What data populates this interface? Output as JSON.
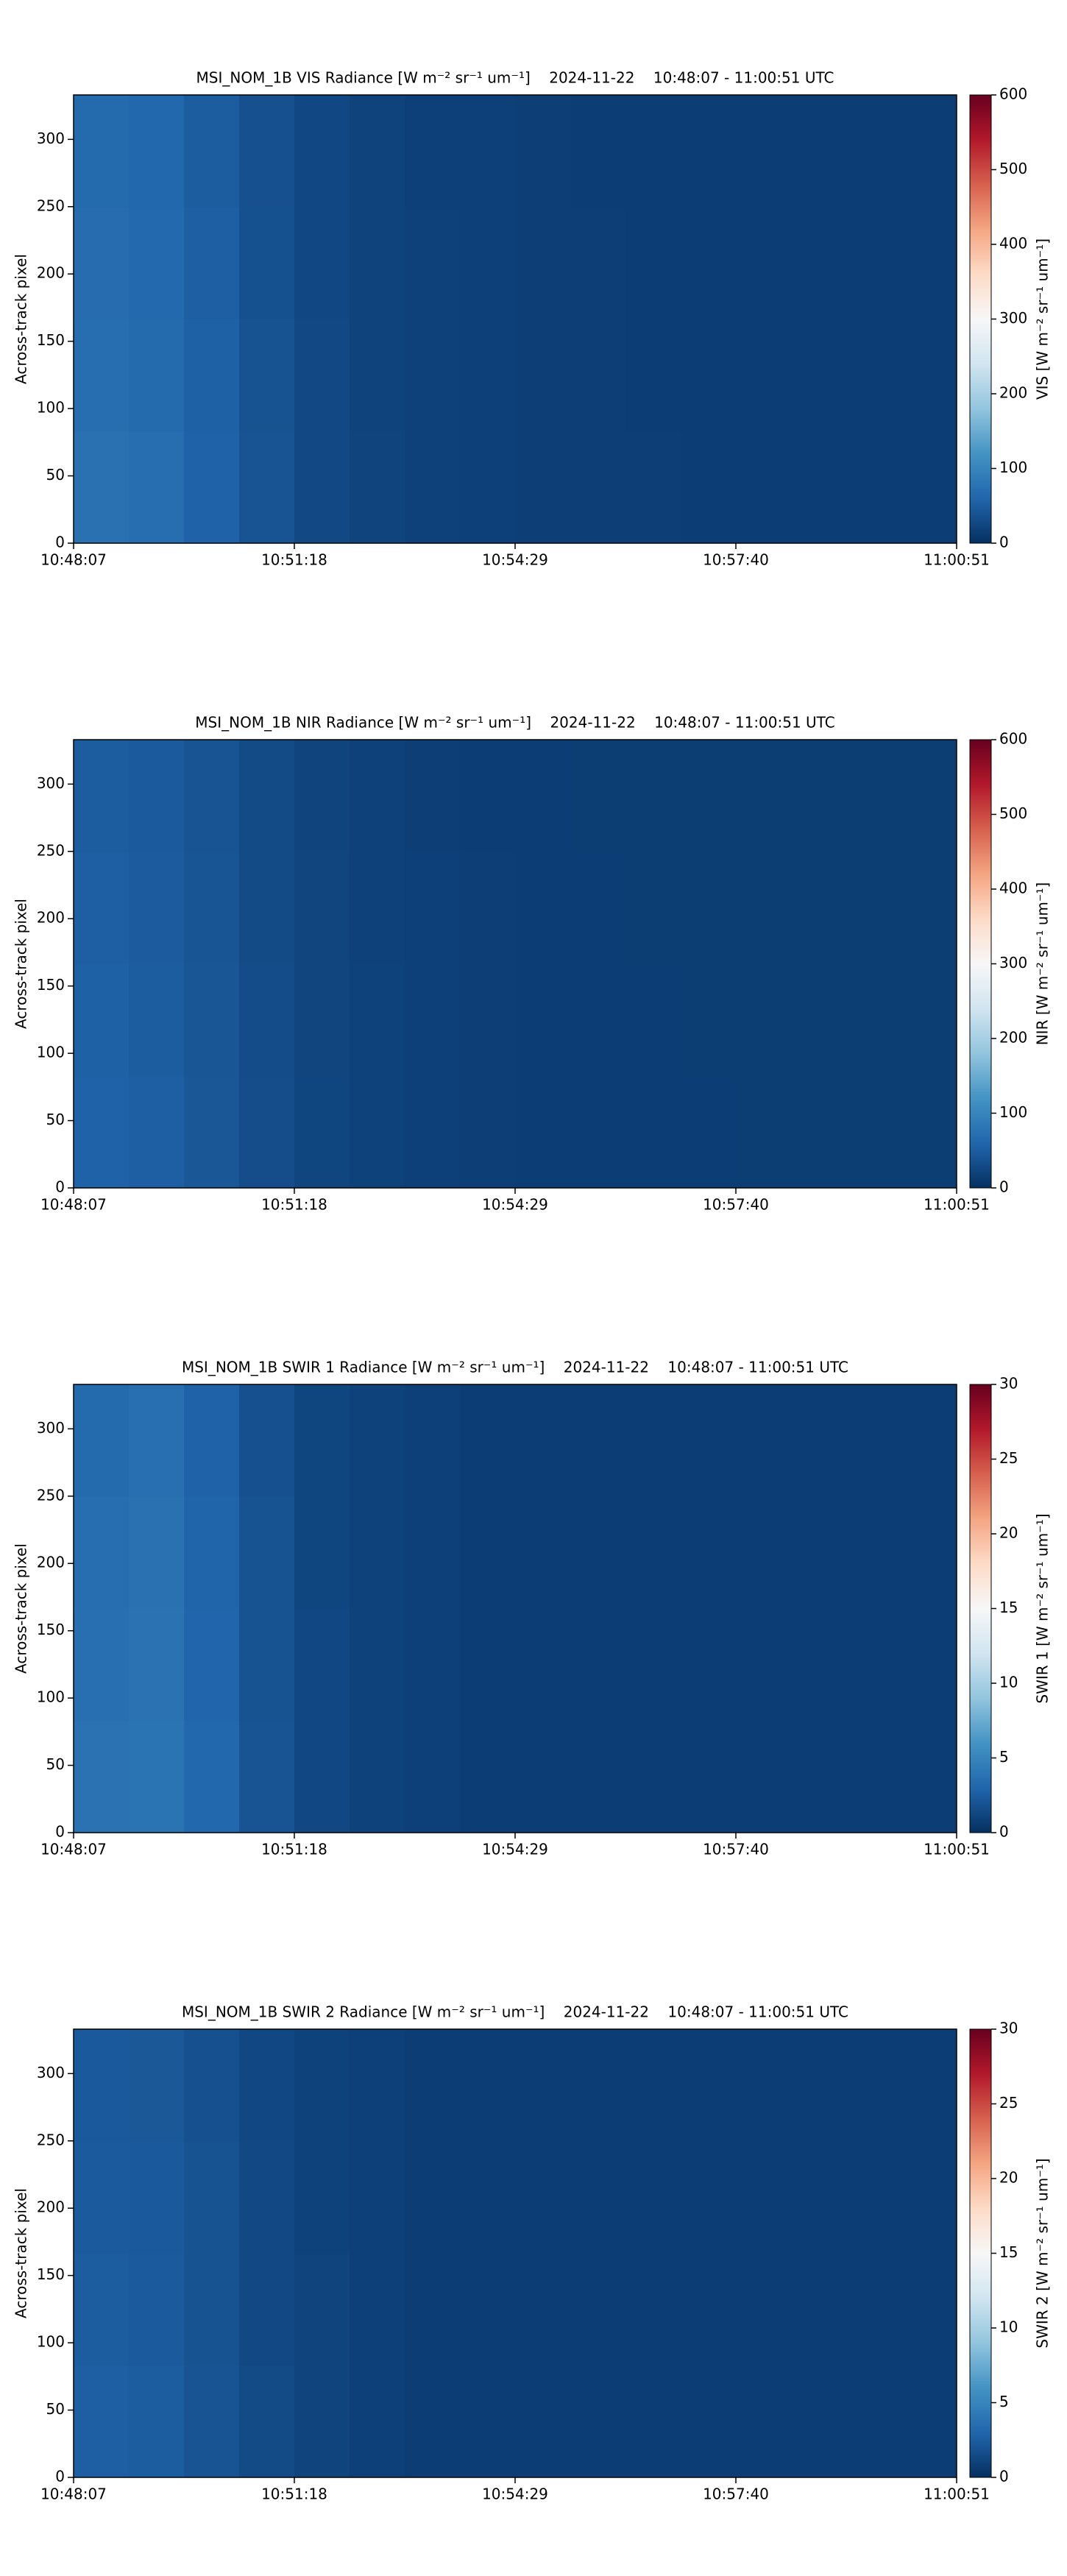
{
  "chart_data": [
    {
      "type": "heatmap",
      "title": "MSI_NOM_1B VIS Radiance [W m⁻² sr⁻¹ um⁻¹]    2024-11-22    10:48:07 - 11:00:51 UTC",
      "y_label": "Across-track pixel",
      "colorbar_label": "VIS [W m⁻² sr⁻¹ um⁻¹]",
      "colormap": "RdBu_r",
      "xticks": [
        "10:48:07",
        "10:51:18",
        "10:54:29",
        "10:57:40",
        "11:00:51"
      ],
      "ylim": [
        0,
        333
      ],
      "yticks": [
        0,
        50,
        100,
        150,
        200,
        250,
        300
      ],
      "zlim": [
        0,
        600
      ],
      "zticks": [
        0,
        100,
        200,
        300,
        400,
        500,
        600
      ],
      "z": [
        [
          74,
          70,
          56,
          40,
          28,
          22,
          19,
          18,
          17,
          17,
          17,
          16,
          16,
          16,
          16,
          16
        ],
        [
          70,
          66,
          54,
          38,
          27,
          21,
          19,
          18,
          17,
          17,
          16,
          16,
          16,
          16,
          16,
          16
        ],
        [
          68,
          64,
          52,
          37,
          26,
          21,
          19,
          18,
          17,
          17,
          16,
          16,
          16,
          16,
          16,
          16
        ],
        [
          66,
          62,
          50,
          36,
          26,
          21,
          18,
          18,
          17,
          16,
          16,
          16,
          16,
          16,
          16,
          16
        ]
      ]
    },
    {
      "type": "heatmap",
      "title": "MSI_NOM_1B NIR Radiance [W m⁻² sr⁻¹ um⁻¹]    2024-11-22    10:48:07 - 11:00:51 UTC",
      "y_label": "Across-track pixel",
      "colorbar_label": "NIR [W m⁻² sr⁻¹ um⁻¹]",
      "colormap": "RdBu_r",
      "xticks": [
        "10:48:07",
        "10:51:18",
        "10:54:29",
        "10:57:40",
        "11:00:51"
      ],
      "ylim": [
        0,
        333
      ],
      "yticks": [
        0,
        50,
        100,
        150,
        200,
        250,
        300
      ],
      "zlim": [
        0,
        600
      ],
      "zticks": [
        0,
        100,
        200,
        300,
        400,
        500,
        600
      ],
      "z": [
        [
          56,
          52,
          43,
          32,
          24,
          20,
          18,
          17,
          16,
          16,
          16,
          16,
          15,
          15,
          15,
          15
        ],
        [
          54,
          50,
          42,
          31,
          23,
          20,
          18,
          17,
          16,
          16,
          16,
          15,
          15,
          15,
          15,
          15
        ],
        [
          52,
          49,
          41,
          30,
          23,
          19,
          18,
          17,
          16,
          16,
          15,
          15,
          15,
          15,
          15,
          15
        ],
        [
          50,
          47,
          40,
          30,
          22,
          19,
          17,
          16,
          16,
          15,
          15,
          15,
          15,
          15,
          15,
          15
        ]
      ]
    },
    {
      "type": "heatmap",
      "title": "MSI_NOM_1B SWIR 1 Radiance [W m⁻² sr⁻¹ um⁻¹]    2024-11-22    10:48:07 - 11:00:51 UTC",
      "y_label": "Across-track pixel",
      "colorbar_label": "SWIR 1 [W m⁻² sr⁻¹ um⁻¹]",
      "colormap": "RdBu_r",
      "xticks": [
        "10:48:07",
        "10:51:18",
        "10:54:29",
        "10:57:40",
        "11:00:51"
      ],
      "ylim": [
        0,
        333
      ],
      "yticks": [
        0,
        50,
        100,
        150,
        200,
        250,
        300
      ],
      "zlim": [
        0,
        30
      ],
      "zticks": [
        0,
        5,
        10,
        15,
        20,
        25,
        30
      ],
      "z": [
        [
          3.8,
          3.9,
          3.1,
          2.0,
          1.3,
          1.0,
          0.9,
          0.8,
          0.8,
          0.8,
          0.8,
          0.8,
          0.8,
          0.8,
          0.8,
          0.8
        ],
        [
          3.6,
          3.8,
          3.0,
          1.9,
          1.3,
          1.0,
          0.9,
          0.8,
          0.8,
          0.8,
          0.8,
          0.8,
          0.8,
          0.8,
          0.8,
          0.8
        ],
        [
          3.5,
          3.7,
          2.9,
          1.9,
          1.2,
          1.0,
          0.9,
          0.8,
          0.8,
          0.8,
          0.8,
          0.8,
          0.8,
          0.8,
          0.8,
          0.8
        ],
        [
          3.3,
          3.6,
          2.8,
          1.8,
          1.2,
          1.0,
          0.9,
          0.8,
          0.8,
          0.8,
          0.8,
          0.8,
          0.8,
          0.8,
          0.8,
          0.8
        ]
      ]
    },
    {
      "type": "heatmap",
      "title": "MSI_NOM_1B SWIR 2 Radiance [W m⁻² sr⁻¹ um⁻¹]    2024-11-22    10:48:07 - 11:00:51 UTC",
      "y_label": "Across-track pixel",
      "colorbar_label": "SWIR 2 [W m⁻² sr⁻¹ um⁻¹]",
      "colormap": "RdBu_r",
      "xticks": [
        "10:48:07",
        "10:51:18",
        "10:54:29",
        "10:57:40",
        "11:00:51"
      ],
      "ylim": [
        0,
        333
      ],
      "yticks": [
        0,
        50,
        100,
        150,
        200,
        250,
        300
      ],
      "zlim": [
        0,
        30
      ],
      "zticks": [
        0,
        5,
        10,
        15,
        20,
        25,
        30
      ],
      "z": [
        [
          2.6,
          2.5,
          2.0,
          1.5,
          1.1,
          0.9,
          0.8,
          0.8,
          0.8,
          0.8,
          0.8,
          0.8,
          0.8,
          0.8,
          0.8,
          0.8
        ],
        [
          2.5,
          2.4,
          1.9,
          1.4,
          1.1,
          0.9,
          0.8,
          0.8,
          0.8,
          0.8,
          0.8,
          0.8,
          0.8,
          0.8,
          0.8,
          0.8
        ],
        [
          2.4,
          2.3,
          1.9,
          1.4,
          1.0,
          0.9,
          0.8,
          0.8,
          0.8,
          0.8,
          0.8,
          0.8,
          0.8,
          0.8,
          0.8,
          0.8
        ],
        [
          2.3,
          2.2,
          1.8,
          1.3,
          1.0,
          0.9,
          0.8,
          0.8,
          0.8,
          0.8,
          0.8,
          0.8,
          0.8,
          0.8,
          0.8,
          0.8
        ]
      ]
    }
  ]
}
